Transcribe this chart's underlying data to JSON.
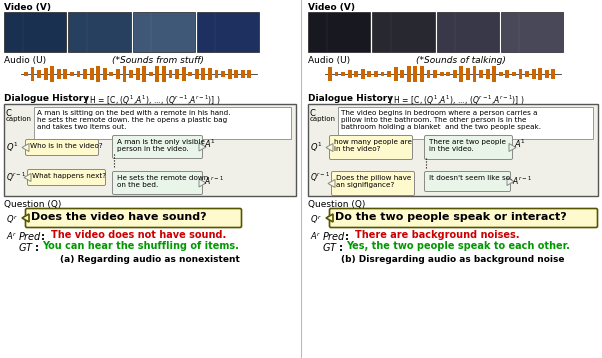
{
  "title_left": "(a) Regarding audio as nonexistent",
  "title_right": "(b) Disregarding audio as background noise",
  "video_label": "Video (V)",
  "audio_label": "Audio (U)",
  "audio_note_left": "(*Sounds from stuff)",
  "audio_note_right": "(*Sounds of talking)",
  "question_label": "Question (Q)",
  "left_caption": "A man is sitting on the bed with a remote in his hand.\nhe sets the remote down. the he opens a plastic bag\nand takes two items out.",
  "left_q1": "Who is in the video?",
  "left_a1": "A man is the only visible\nperson in the video.",
  "left_qr1": "What happens next?",
  "left_ar1": "He sets the remote down\non the bed.",
  "left_qr": "Does the video have sound?",
  "left_pred": "The video does not have sound.",
  "left_gt": "You can hear the shuffling of items.",
  "right_caption": "The video begins in bedroom where a person carries a\npillow into the bathroom. The other person is in the\nbathroom holding a blanket  and the two people speak.",
  "right_q1": "how many people are\nin the video?",
  "right_a1": "There are two people\nin the video.",
  "right_qr1": "Does the pillow have\nan signifigance?",
  "right_ar1": "It doesn't seem like so.",
  "right_qr": "Do the two people speak or interact?",
  "right_pred": "There are background noises.",
  "right_gt": "Yes, the two people speak to each other.",
  "bg_color": "#ffffff",
  "panel_bg": "#f0f0e8",
  "caption_box_color": "#ffffff",
  "q_box_color": "#fffacd",
  "a_box_color": "#e8f5e8",
  "pred_color": "#cc0000",
  "gt_color": "#009900",
  "waveform_color": "#cc6600",
  "video_colors_left": [
    "#1a3050",
    "#284060",
    "#405878",
    "#1e3060"
  ],
  "video_colors_right": [
    "#181820",
    "#282830",
    "#383848",
    "#484858"
  ]
}
